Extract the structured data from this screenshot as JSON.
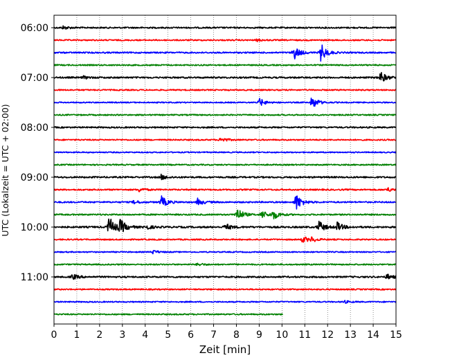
{
  "chart_data": {
    "type": "line",
    "title": "",
    "xlabel": "Zeit  [min]",
    "ylabel": "UTC (Lokalzeit = UTC + 02:00)",
    "xlim": [
      0,
      15
    ],
    "xticks": [
      0,
      1,
      2,
      3,
      4,
      5,
      6,
      7,
      8,
      9,
      10,
      11,
      12,
      13,
      14,
      15
    ],
    "x_grid": "dotted",
    "line_interval_minutes": 15,
    "hour_labels": [
      "06:00",
      "07:00",
      "08:00",
      "09:00",
      "10:00",
      "11:00"
    ],
    "series_colors": [
      "#000000",
      "#ff0000",
      "#0000ff",
      "#008000"
    ],
    "lines": [
      {
        "start": "06:00",
        "color": "#000000",
        "amplitude": 1.0,
        "end_min": 15,
        "events": [
          {
            "t": 0.4,
            "a": 2.5
          }
        ]
      },
      {
        "start": "06:15",
        "color": "#ff0000",
        "amplitude": 0.9,
        "end_min": 15,
        "events": [
          {
            "t": 8.9,
            "a": 1.5
          }
        ]
      },
      {
        "start": "06:30",
        "color": "#0000ff",
        "amplitude": 1.0,
        "end_min": 15,
        "events": [
          {
            "t": 10.5,
            "a": 11
          },
          {
            "t": 11.7,
            "a": 13
          }
        ]
      },
      {
        "start": "06:45",
        "color": "#008000",
        "amplitude": 0.9,
        "end_min": 15,
        "events": []
      },
      {
        "start": "07:00",
        "color": "#000000",
        "amplitude": 1.1,
        "end_min": 15,
        "events": [
          {
            "t": 1.3,
            "a": 1.8
          },
          {
            "t": 14.3,
            "a": 9
          }
        ]
      },
      {
        "start": "07:15",
        "color": "#ff0000",
        "amplitude": 0.9,
        "end_min": 15,
        "events": []
      },
      {
        "start": "07:30",
        "color": "#0000ff",
        "amplitude": 0.8,
        "end_min": 15,
        "events": [
          {
            "t": 9.0,
            "a": 6
          },
          {
            "t": 11.3,
            "a": 10
          }
        ]
      },
      {
        "start": "07:45",
        "color": "#008000",
        "amplitude": 0.9,
        "end_min": 15,
        "events": []
      },
      {
        "start": "08:00",
        "color": "#000000",
        "amplitude": 1.0,
        "end_min": 15,
        "events": []
      },
      {
        "start": "08:15",
        "color": "#ff0000",
        "amplitude": 0.9,
        "end_min": 15,
        "events": [
          {
            "t": 7.3,
            "a": 4
          }
        ]
      },
      {
        "start": "08:30",
        "color": "#0000ff",
        "amplitude": 0.8,
        "end_min": 15,
        "events": []
      },
      {
        "start": "08:45",
        "color": "#008000",
        "amplitude": 0.9,
        "end_min": 15,
        "events": []
      },
      {
        "start": "09:00",
        "color": "#000000",
        "amplitude": 1.1,
        "end_min": 15,
        "events": [
          {
            "t": 4.7,
            "a": 3.5
          }
        ]
      },
      {
        "start": "09:15",
        "color": "#ff0000",
        "amplitude": 1.0,
        "end_min": 15,
        "events": [
          {
            "t": 3.7,
            "a": 3
          },
          {
            "t": 14.6,
            "a": 3
          }
        ]
      },
      {
        "start": "09:30",
        "color": "#0000ff",
        "amplitude": 1.0,
        "end_min": 15,
        "events": [
          {
            "t": 3.5,
            "a": 2.5
          },
          {
            "t": 4.7,
            "a": 9
          },
          {
            "t": 6.3,
            "a": 5
          },
          {
            "t": 10.6,
            "a": 13
          }
        ]
      },
      {
        "start": "09:45",
        "color": "#008000",
        "amplitude": 1.0,
        "end_min": 15,
        "events": [
          {
            "t": 8.0,
            "a": 11
          },
          {
            "t": 9.1,
            "a": 6
          },
          {
            "t": 9.6,
            "a": 7
          }
        ]
      },
      {
        "start": "10:00",
        "color": "#000000",
        "amplitude": 1.2,
        "end_min": 15,
        "events": [
          {
            "t": 2.4,
            "a": 16
          },
          {
            "t": 2.9,
            "a": 10
          },
          {
            "t": 4.0,
            "a": 4
          },
          {
            "t": 7.5,
            "a": 5
          },
          {
            "t": 11.6,
            "a": 9
          },
          {
            "t": 12.4,
            "a": 7
          }
        ]
      },
      {
        "start": "10:15",
        "color": "#ff0000",
        "amplitude": 0.9,
        "end_min": 15,
        "events": [
          {
            "t": 10.9,
            "a": 5
          },
          {
            "t": 11.3,
            "a": 3
          }
        ]
      },
      {
        "start": "10:30",
        "color": "#0000ff",
        "amplitude": 0.8,
        "end_min": 15,
        "events": [
          {
            "t": 4.3,
            "a": 3
          }
        ]
      },
      {
        "start": "10:45",
        "color": "#008000",
        "amplitude": 0.9,
        "end_min": 15,
        "events": [
          {
            "t": 6.3,
            "a": 2
          }
        ]
      },
      {
        "start": "11:00",
        "color": "#000000",
        "amplitude": 1.1,
        "end_min": 15,
        "events": [
          {
            "t": 0.8,
            "a": 4
          },
          {
            "t": 14.6,
            "a": 4
          }
        ]
      },
      {
        "start": "11:15",
        "color": "#ff0000",
        "amplitude": 0.9,
        "end_min": 15,
        "events": []
      },
      {
        "start": "11:30",
        "color": "#0000ff",
        "amplitude": 0.8,
        "end_min": 15,
        "events": [
          {
            "t": 12.7,
            "a": 2
          }
        ]
      },
      {
        "start": "11:45",
        "color": "#008000",
        "amplitude": 0.9,
        "end_min": 10.05,
        "events": []
      }
    ]
  }
}
